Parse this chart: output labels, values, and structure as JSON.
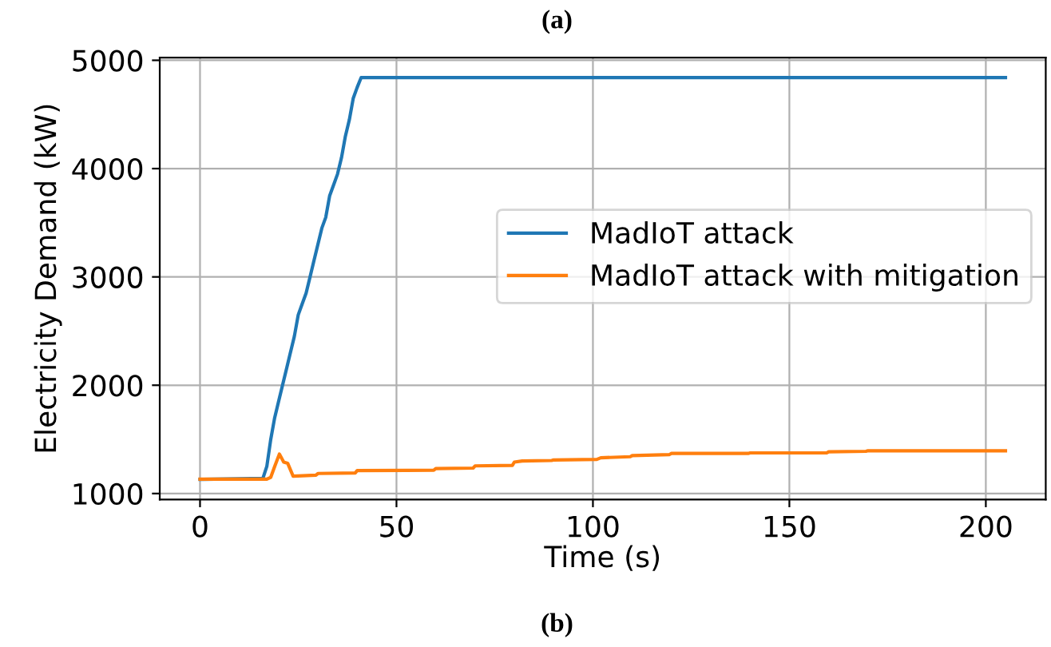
{
  "chart_data": {
    "type": "line",
    "title": "(a)",
    "xlabel": "Time (s)",
    "ylabel": "Electricity Demand (kW)",
    "annotations": [
      "(b)"
    ],
    "xlim": [
      -10.25,
      215.25
    ],
    "ylim": [
      945,
      5025
    ],
    "xticks": [
      0,
      50,
      100,
      150,
      200
    ],
    "yticks": [
      1000,
      2000,
      3000,
      4000,
      5000
    ],
    "grid": true,
    "legend": "right",
    "marker": "none",
    "line_style": "solid",
    "series": [
      {
        "name": "MadIoT attack",
        "color": "#1f77b4",
        "x": [
          0,
          16,
          17,
          18,
          19,
          20,
          21,
          22,
          23,
          24,
          25,
          26,
          27,
          28,
          29,
          30,
          31,
          32,
          33,
          34,
          35,
          36,
          37,
          38,
          39,
          40,
          41,
          205
        ],
        "values": [
          1130,
          1140,
          1250,
          1500,
          1700,
          1850,
          2000,
          2150,
          2300,
          2450,
          2650,
          2750,
          2850,
          3000,
          3150,
          3300,
          3450,
          3550,
          3750,
          3850,
          3950,
          4100,
          4300,
          4450,
          4650,
          4750,
          4840,
          4840
        ]
      },
      {
        "name": "MadIoT attack with mitigation",
        "color": "#ff7f0e",
        "x": [
          0,
          17,
          18,
          19,
          20.2,
          21.3,
          22.3,
          23.7,
          29.5,
          30,
          39.5,
          40,
          59.5,
          60,
          69.5,
          70,
          79.5,
          80,
          82,
          89.5,
          90,
          101,
          102,
          109.5,
          110,
          119.5,
          120,
          139.5,
          140,
          159.5,
          160,
          169.5,
          170,
          205
        ],
        "values": [
          1133,
          1133,
          1150,
          1250,
          1365,
          1290,
          1280,
          1160,
          1170,
          1185,
          1190,
          1212,
          1215,
          1230,
          1235,
          1255,
          1260,
          1290,
          1300,
          1305,
          1310,
          1315,
          1330,
          1340,
          1350,
          1360,
          1370,
          1370,
          1375,
          1375,
          1385,
          1390,
          1395,
          1395
        ]
      }
    ]
  }
}
